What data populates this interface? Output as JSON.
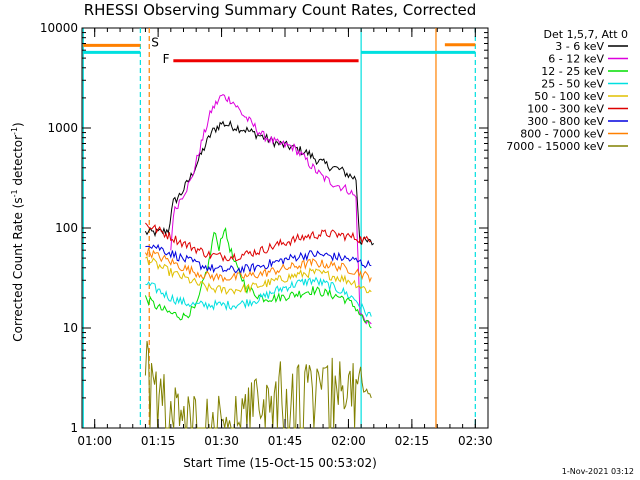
{
  "chart_data": {
    "type": "line",
    "title": "RHESSI Observing Summary Count Rates, Corrected",
    "xlabel": "Start Time (15-Oct-15 00:53:02)",
    "ylabel": "Corrected Count Rate (s",
    "ylabel_sup1": "-1",
    "ylabel_mid": " detector",
    "ylabel_sup2": "-1",
    "ylabel_end": ")",
    "y_scale": "log",
    "ylim": [
      1,
      10000
    ],
    "xlim_minutes": [
      0.95,
      2.55
    ],
    "x_ticks": [
      {
        "t": 1.0,
        "label": "01:00"
      },
      {
        "t": 1.25,
        "label": "01:15"
      },
      {
        "t": 1.5,
        "label": "01:30"
      },
      {
        "t": 1.75,
        "label": "01:45"
      },
      {
        "t": 2.0,
        "label": "02:00"
      },
      {
        "t": 2.25,
        "label": "02:15"
      },
      {
        "t": 2.5,
        "label": "02:30"
      }
    ],
    "y_ticks": [
      {
        "v": 1,
        "label": "1"
      },
      {
        "v": 10,
        "label": "10"
      },
      {
        "v": 100,
        "label": "100"
      },
      {
        "v": 1000,
        "label": "1000"
      },
      {
        "v": 10000,
        "label": "10000"
      }
    ],
    "legend_header": "Det 1,5,7, Att 0",
    "series": [
      {
        "name": "3 - 6 keV",
        "color": "#000000",
        "points": [
          [
            1.2,
            90
          ],
          [
            1.25,
            90
          ],
          [
            1.29,
            95
          ],
          [
            1.31,
            180
          ],
          [
            1.34,
            220
          ],
          [
            1.38,
            330
          ],
          [
            1.42,
            550
          ],
          [
            1.46,
            900
          ],
          [
            1.5,
            1120
          ],
          [
            1.54,
            1050
          ],
          [
            1.6,
            950
          ],
          [
            1.66,
            820
          ],
          [
            1.72,
            700
          ],
          [
            1.78,
            640
          ],
          [
            1.84,
            560
          ],
          [
            1.88,
            470
          ],
          [
            1.92,
            420
          ],
          [
            1.97,
            380
          ],
          [
            2.0,
            340
          ],
          [
            2.03,
            310
          ],
          [
            2.045,
            75
          ],
          [
            2.08,
            72
          ],
          [
            2.1,
            70
          ]
        ]
      },
      {
        "name": "6 - 12 keV",
        "color": "#dd00dd",
        "points": [
          [
            1.3,
            60
          ],
          [
            1.31,
            140
          ],
          [
            1.34,
            200
          ],
          [
            1.38,
            300
          ],
          [
            1.42,
            700
          ],
          [
            1.46,
            1500
          ],
          [
            1.5,
            2100
          ],
          [
            1.54,
            1900
          ],
          [
            1.58,
            1400
          ],
          [
            1.62,
            1100
          ],
          [
            1.66,
            850
          ],
          [
            1.72,
            700
          ],
          [
            1.78,
            650
          ],
          [
            1.82,
            520
          ],
          [
            1.86,
            400
          ],
          [
            1.9,
            320
          ],
          [
            1.94,
            280
          ],
          [
            2.0,
            240
          ],
          [
            2.03,
            200
          ],
          [
            2.045,
            14
          ],
          [
            2.07,
            12
          ],
          [
            2.09,
            11
          ]
        ]
      },
      {
        "name": "12 - 25 keV",
        "color": "#00dd00",
        "points": [
          [
            1.2,
            20
          ],
          [
            1.25,
            16
          ],
          [
            1.3,
            14
          ],
          [
            1.35,
            13
          ],
          [
            1.4,
            16
          ],
          [
            1.45,
            45
          ],
          [
            1.47,
            90
          ],
          [
            1.49,
            65
          ],
          [
            1.51,
            100
          ],
          [
            1.55,
            45
          ],
          [
            1.6,
            25
          ],
          [
            1.66,
            20
          ],
          [
            1.72,
            20
          ],
          [
            1.8,
            22
          ],
          [
            1.86,
            24
          ],
          [
            1.92,
            22
          ],
          [
            1.98,
            20
          ],
          [
            2.03,
            16
          ],
          [
            2.06,
            12
          ],
          [
            2.09,
            10
          ]
        ]
      },
      {
        "name": "25 - 50 keV",
        "color": "#00e0e0",
        "points": [
          [
            1.2,
            28
          ],
          [
            1.25,
            24
          ],
          [
            1.3,
            20
          ],
          [
            1.35,
            18
          ],
          [
            1.4,
            17
          ],
          [
            1.45,
            17
          ],
          [
            1.5,
            17
          ],
          [
            1.55,
            17
          ],
          [
            1.6,
            18
          ],
          [
            1.66,
            20
          ],
          [
            1.72,
            24
          ],
          [
            1.8,
            28
          ],
          [
            1.86,
            30
          ],
          [
            1.92,
            27
          ],
          [
            1.98,
            23
          ],
          [
            2.03,
            19
          ],
          [
            2.06,
            15
          ],
          [
            2.09,
            13
          ]
        ]
      },
      {
        "name": "50 - 100 keV",
        "color": "#e0c000",
        "points": [
          [
            1.2,
            50
          ],
          [
            1.25,
            42
          ],
          [
            1.3,
            36
          ],
          [
            1.35,
            32
          ],
          [
            1.4,
            28
          ],
          [
            1.45,
            25
          ],
          [
            1.5,
            24
          ],
          [
            1.55,
            24
          ],
          [
            1.6,
            25
          ],
          [
            1.66,
            27
          ],
          [
            1.72,
            30
          ],
          [
            1.8,
            34
          ],
          [
            1.86,
            36
          ],
          [
            1.92,
            34
          ],
          [
            1.98,
            31
          ],
          [
            2.03,
            28
          ],
          [
            2.06,
            25
          ],
          [
            2.09,
            23
          ]
        ]
      },
      {
        "name": "100 - 300 keV",
        "color": "#dd0000",
        "points": [
          [
            1.2,
            110
          ],
          [
            1.25,
            95
          ],
          [
            1.3,
            82
          ],
          [
            1.35,
            70
          ],
          [
            1.4,
            62
          ],
          [
            1.45,
            54
          ],
          [
            1.5,
            52
          ],
          [
            1.55,
            52
          ],
          [
            1.6,
            55
          ],
          [
            1.66,
            60
          ],
          [
            1.72,
            68
          ],
          [
            1.8,
            78
          ],
          [
            1.86,
            85
          ],
          [
            1.92,
            88
          ],
          [
            1.98,
            84
          ],
          [
            2.03,
            80
          ],
          [
            2.06,
            76
          ],
          [
            2.09,
            74
          ]
        ]
      },
      {
        "name": "300 - 800 keV",
        "color": "#0000dd",
        "points": [
          [
            1.2,
            72
          ],
          [
            1.25,
            64
          ],
          [
            1.3,
            56
          ],
          [
            1.35,
            49
          ],
          [
            1.4,
            44
          ],
          [
            1.45,
            40
          ],
          [
            1.5,
            38
          ],
          [
            1.55,
            38
          ],
          [
            1.6,
            39
          ],
          [
            1.66,
            42
          ],
          [
            1.72,
            46
          ],
          [
            1.8,
            52
          ],
          [
            1.86,
            55
          ],
          [
            1.92,
            53
          ],
          [
            1.98,
            50
          ],
          [
            2.03,
            47
          ],
          [
            2.06,
            44
          ],
          [
            2.09,
            42
          ]
        ]
      },
      {
        "name": "800 - 7000 keV",
        "color": "#ff8000",
        "points": [
          [
            1.2,
            60
          ],
          [
            1.25,
            52
          ],
          [
            1.3,
            46
          ],
          [
            1.35,
            40
          ],
          [
            1.4,
            36
          ],
          [
            1.45,
            33
          ],
          [
            1.5,
            32
          ],
          [
            1.55,
            32
          ],
          [
            1.6,
            33
          ],
          [
            1.66,
            35
          ],
          [
            1.72,
            38
          ],
          [
            1.8,
            42
          ],
          [
            1.86,
            45
          ],
          [
            1.92,
            43
          ],
          [
            1.98,
            40
          ],
          [
            2.03,
            37
          ],
          [
            2.06,
            34
          ],
          [
            2.09,
            32
          ]
        ]
      },
      {
        "name": "7000 - 15000 keV",
        "color": "#808000",
        "points": [
          [
            1.2,
            4.5
          ],
          [
            1.23,
            4.2
          ],
          [
            1.26,
            3.0
          ],
          [
            1.28,
            2.2
          ],
          [
            1.3,
            1.6
          ],
          [
            1.34,
            1.5
          ],
          [
            1.38,
            1.3
          ],
          [
            1.42,
            1.3
          ],
          [
            1.46,
            1.2
          ],
          [
            1.5,
            1.3
          ],
          [
            1.55,
            1.4
          ],
          [
            1.6,
            1.5
          ],
          [
            1.66,
            2.0
          ],
          [
            1.72,
            2.6
          ],
          [
            1.78,
            2.8
          ],
          [
            1.84,
            2.9
          ],
          [
            1.9,
            2.9
          ],
          [
            1.96,
            2.8
          ],
          [
            2.03,
            2.5
          ],
          [
            2.06,
            2.2
          ],
          [
            2.09,
            2.0
          ]
        ]
      }
    ],
    "vertical_lines": [
      {
        "t": 0.955,
        "color": "#00e0e0",
        "style": "solid"
      },
      {
        "t": 1.18,
        "color": "#00e0e0",
        "style": "dashed"
      },
      {
        "t": 1.215,
        "color": "#ff8000",
        "style": "dashed"
      },
      {
        "t": 2.05,
        "color": "#00e0e0",
        "style": "solid"
      },
      {
        "t": 2.345,
        "color": "#ff8000",
        "style": "solid"
      },
      {
        "t": 2.5,
        "color": "#00e0e0",
        "style": "dashed"
      }
    ],
    "bars": [
      {
        "t0": 0.955,
        "t1": 1.18,
        "y": 6700,
        "color": "#ff8000"
      },
      {
        "t0": 0.955,
        "t1": 1.18,
        "y": 5700,
        "color": "#00e0e0"
      },
      {
        "t0": 2.05,
        "t1": 2.5,
        "y": 5700,
        "color": "#00e0e0"
      },
      {
        "t0": 2.38,
        "t1": 2.5,
        "y": 6800,
        "color": "#ff8000"
      },
      {
        "t0": 1.31,
        "t1": 2.04,
        "y": 4700,
        "color": "#ee0000"
      }
    ],
    "annotations": [
      {
        "text": "S",
        "t": 1.215,
        "y": 7200,
        "color": "#ff8000"
      },
      {
        "text": "F",
        "t": 1.26,
        "y": 4900,
        "color": "#ee0000"
      }
    ]
  },
  "timestamp": "1-Nov-2021 03:12"
}
